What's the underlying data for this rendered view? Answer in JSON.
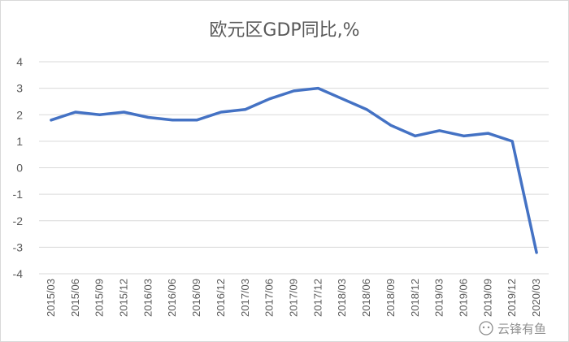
{
  "chart_data": {
    "type": "line",
    "title": "欧元区GDP同比,%",
    "xlabel": "",
    "ylabel": "",
    "ylim": [
      -4,
      4
    ],
    "yticks": [
      4,
      3,
      2,
      1,
      0,
      -1,
      -2,
      -3,
      -4
    ],
    "grid": true,
    "legend": "none",
    "categories": [
      "2015/03",
      "2015/06",
      "2015/09",
      "2015/12",
      "2016/03",
      "2016/06",
      "2016/09",
      "2016/12",
      "2017/03",
      "2017/06",
      "2017/09",
      "2017/12",
      "2018/03",
      "2018/06",
      "2018/09",
      "2018/12",
      "2019/03",
      "2019/06",
      "2019/09",
      "2019/12",
      "2020/03"
    ],
    "series": [
      {
        "values": [
          1.8,
          2.1,
          2.0,
          2.1,
          1.9,
          1.8,
          1.8,
          2.1,
          2.2,
          2.6,
          2.9,
          3.0,
          2.6,
          2.2,
          1.6,
          1.2,
          1.4,
          1.2,
          1.3,
          1.0,
          -3.2
        ]
      }
    ],
    "line_color": "#4472c4"
  },
  "watermark": {
    "text": "云锋有鱼",
    "icon": "wechat-icon"
  }
}
